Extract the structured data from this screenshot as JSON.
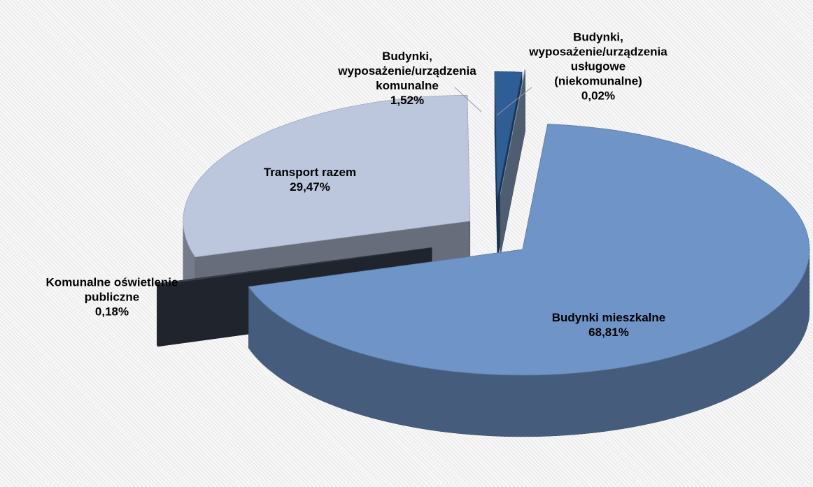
{
  "chart_data": {
    "type": "pie3d",
    "categories": [
      "Budynki mieszkalne",
      "Komunalne oświetlenie publiczne",
      "Transport razem",
      "Budynki, wyposażenie/urządzenia komunalne",
      "Budynki, wyposażenie/urządzenia usługowe (niekomunalne)"
    ],
    "values": [
      68.81,
      0.18,
      29.47,
      1.52,
      0.02
    ],
    "value_labels": [
      "68,81%",
      "0,18%",
      "29,47%",
      "1,52%",
      "0,02%"
    ],
    "colors": [
      "#6f94c8",
      "#3b4252",
      "#bcc7dd",
      "#2f5d95",
      "#8fa9cc"
    ]
  }
}
